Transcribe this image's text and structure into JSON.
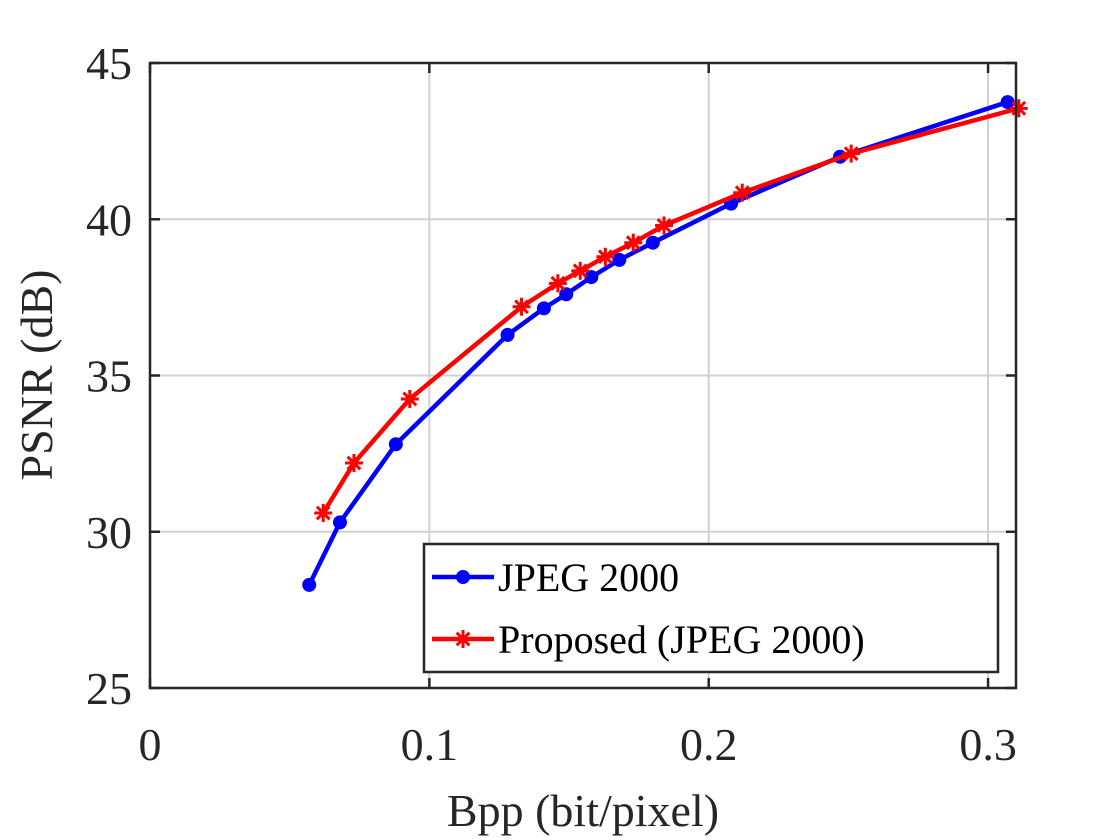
{
  "chart_data": {
    "type": "line",
    "xlabel": "Bpp (bit/pixel)",
    "ylabel": "PSNR (dB)",
    "xlim": [
      0,
      0.31
    ],
    "ylim": [
      25,
      45
    ],
    "xticks": [
      0,
      0.1,
      0.2,
      0.3
    ],
    "xtick_labels": [
      "0",
      "0.1",
      "0.2",
      "0.3"
    ],
    "yticks": [
      25,
      30,
      35,
      40,
      45
    ],
    "ytick_labels": [
      "25",
      "30",
      "35",
      "40",
      "45"
    ],
    "grid": true,
    "legend_position": "bottom-right",
    "series": [
      {
        "name": "JPEG 2000",
        "color": "#0000ff",
        "marker": "dot",
        "x": [
          0.057,
          0.068,
          0.088,
          0.128,
          0.141,
          0.149,
          0.158,
          0.168,
          0.18,
          0.208,
          0.247,
          0.307
        ],
        "y": [
          28.3,
          30.3,
          32.8,
          36.3,
          37.15,
          37.6,
          38.15,
          38.7,
          39.25,
          40.5,
          42.0,
          43.75
        ]
      },
      {
        "name": "Proposed (JPEG 2000)",
        "color": "#ff0000",
        "marker": "star",
        "x": [
          0.062,
          0.073,
          0.093,
          0.133,
          0.146,
          0.154,
          0.163,
          0.173,
          0.184,
          0.212,
          0.251,
          0.311
        ],
        "y": [
          30.6,
          32.2,
          34.25,
          37.2,
          37.95,
          38.35,
          38.8,
          39.25,
          39.8,
          40.85,
          42.1,
          43.55
        ]
      }
    ]
  }
}
